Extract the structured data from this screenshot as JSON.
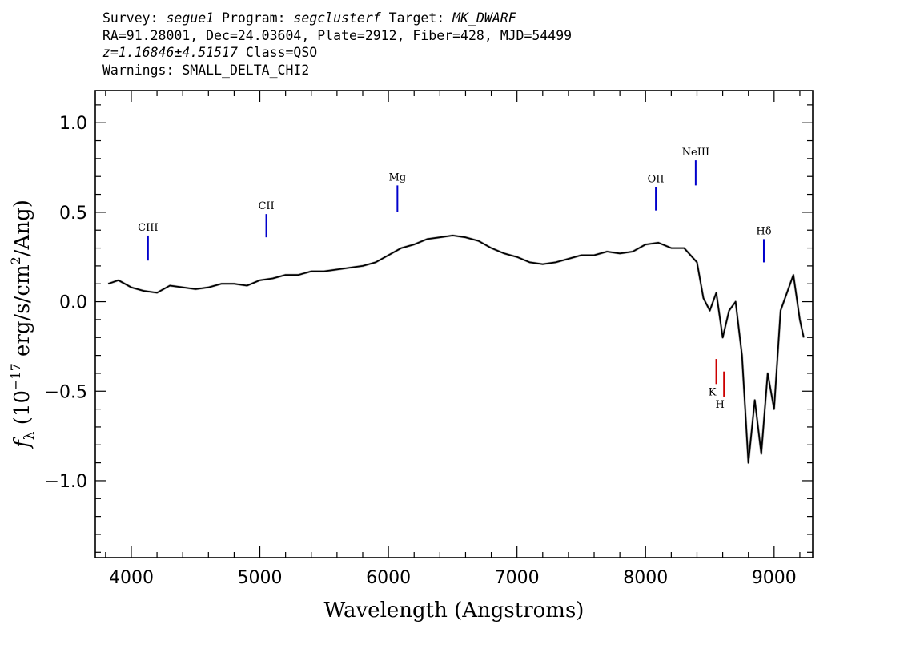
{
  "header": {
    "line1": {
      "survey_label": "Survey:",
      "survey": "segue1",
      "program_label": "Program:",
      "program": "segclusterf",
      "target_label": "Target:",
      "target": "MK_DWARF"
    },
    "line2": "RA=91.28001, Dec=24.03604, Plate=2912, Fiber=428, MJD=54499",
    "line3": {
      "z": "z=1.16846±4.51517",
      "class": "Class=QSO"
    },
    "line4": "Warnings: SMALL_DELTA_CHI2"
  },
  "chart_data": {
    "type": "line",
    "xlabel": "Wavelength (Angstroms)",
    "ylabel": "f_λ (10^-17 erg/s/cm^2/Ang)",
    "xlim": [
      3720,
      9300
    ],
    "ylim": [
      -1.43,
      1.18
    ],
    "xticks": [
      4000,
      5000,
      6000,
      7000,
      8000,
      9000
    ],
    "yticks": [
      -1.0,
      -0.5,
      0.0,
      0.5,
      1.0
    ],
    "ytick_labels": [
      "−1.0",
      "−0.5",
      "0.0",
      "0.5",
      "1.0"
    ],
    "series": [
      {
        "role": "flux",
        "color": "#c0c0c0",
        "x": [
          3820,
          3900,
          4000,
          4100,
          4200,
          4300,
          4400,
          4500,
          4600,
          4700,
          4800,
          4900,
          5000,
          5100,
          5200,
          5300,
          5400,
          5500,
          5600,
          5700,
          5800,
          5900,
          6000,
          6100,
          6200,
          6300,
          6400,
          6500,
          6600,
          6700,
          6800,
          6900,
          7000,
          7100,
          7200,
          7300,
          7400,
          7500,
          7600,
          7700,
          7800,
          7900,
          8000,
          8100,
          8200,
          8300,
          8400,
          8450,
          8500,
          8550,
          8600,
          8650,
          8700,
          8750,
          8800,
          8850,
          8900,
          8950,
          9000,
          9050,
          9100,
          9150,
          9200,
          9230
        ],
        "y": [
          0.1,
          0.12,
          0.08,
          0.06,
          0.05,
          0.09,
          0.08,
          0.07,
          0.08,
          0.1,
          0.1,
          0.09,
          0.12,
          0.13,
          0.15,
          0.15,
          0.17,
          0.17,
          0.18,
          0.19,
          0.2,
          0.22,
          0.26,
          0.3,
          0.32,
          0.35,
          0.36,
          0.37,
          0.36,
          0.34,
          0.3,
          0.27,
          0.25,
          0.22,
          0.21,
          0.22,
          0.24,
          0.26,
          0.26,
          0.28,
          0.27,
          0.28,
          0.32,
          0.33,
          0.3,
          0.3,
          0.22,
          0.02,
          -0.05,
          0.05,
          -0.2,
          -0.05,
          0.0,
          -0.3,
          -0.9,
          -0.55,
          -0.85,
          -0.4,
          -0.6,
          -0.05,
          0.05,
          0.15,
          -0.1,
          -0.2
        ]
      },
      {
        "role": "flux-smoothed",
        "color": "#000000",
        "x": [
          3820,
          3900,
          4000,
          4100,
          4200,
          4300,
          4400,
          4500,
          4600,
          4700,
          4800,
          4900,
          5000,
          5100,
          5200,
          5300,
          5400,
          5500,
          5600,
          5700,
          5800,
          5900,
          6000,
          6100,
          6200,
          6300,
          6400,
          6500,
          6600,
          6700,
          6800,
          6900,
          7000,
          7100,
          7200,
          7300,
          7400,
          7500,
          7600,
          7700,
          7800,
          7900,
          8000,
          8100,
          8200,
          8300,
          8400,
          8450,
          8500,
          8550,
          8600,
          8650,
          8700,
          8750,
          8800,
          8850,
          8900,
          8950,
          9000,
          9050,
          9100,
          9150,
          9200,
          9230
        ],
        "y": [
          0.1,
          0.12,
          0.08,
          0.06,
          0.05,
          0.09,
          0.08,
          0.07,
          0.08,
          0.1,
          0.1,
          0.09,
          0.12,
          0.13,
          0.15,
          0.15,
          0.17,
          0.17,
          0.18,
          0.19,
          0.2,
          0.22,
          0.26,
          0.3,
          0.32,
          0.35,
          0.36,
          0.37,
          0.36,
          0.34,
          0.3,
          0.27,
          0.25,
          0.22,
          0.21,
          0.22,
          0.24,
          0.26,
          0.26,
          0.28,
          0.27,
          0.28,
          0.32,
          0.33,
          0.3,
          0.3,
          0.22,
          0.02,
          -0.05,
          0.05,
          -0.2,
          -0.05,
          0.0,
          -0.3,
          -0.9,
          -0.55,
          -0.85,
          -0.4,
          -0.6,
          -0.05,
          0.05,
          0.15,
          -0.1,
          -0.2
        ]
      }
    ],
    "line_markers": [
      {
        "label": "CIII",
        "x": 4130,
        "y0": 0.23,
        "y1": 0.37,
        "color": "#0000cc"
      },
      {
        "label": "CII",
        "x": 5050,
        "y0": 0.36,
        "y1": 0.49,
        "color": "#0000cc"
      },
      {
        "label": "Mg",
        "x": 6070,
        "y0": 0.5,
        "y1": 0.65,
        "color": "#0000cc"
      },
      {
        "label": "OII",
        "x": 8080,
        "y0": 0.51,
        "y1": 0.64,
        "color": "#0000cc"
      },
      {
        "label": "NeIII",
        "x": 8390,
        "y0": 0.65,
        "y1": 0.79,
        "color": "#0000cc"
      },
      {
        "label": "Hδ",
        "x": 8920,
        "y0": 0.22,
        "y1": 0.35,
        "color": "#0000cc"
      },
      {
        "label": "K",
        "x": 8550,
        "y0": -0.46,
        "y1": -0.32,
        "color": "#cc0000"
      },
      {
        "label": "H",
        "x": 8610,
        "y0": -0.53,
        "y1": -0.39,
        "color": "#cc0000"
      }
    ],
    "grid": false,
    "legend": "none"
  }
}
